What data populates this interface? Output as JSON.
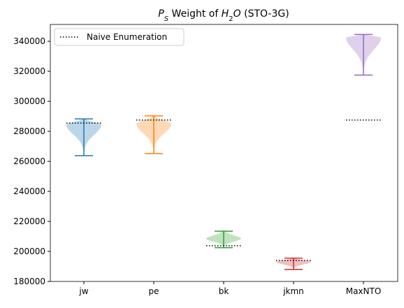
{
  "chart_data": {
    "type": "violin",
    "title": [
      {
        "text": "P",
        "italic": true
      },
      {
        "text": "S",
        "italic": true,
        "sub": true
      },
      {
        "text": " Weight of "
      },
      {
        "text": "H",
        "italic": true
      },
      {
        "text": "2",
        "sub": true
      },
      {
        "text": "O",
        "italic": true
      },
      {
        "text": " (STO-3G)"
      }
    ],
    "categories": [
      "jw",
      "pe",
      "bk",
      "jkmn",
      "MaxNTO"
    ],
    "colors": [
      "#1f77b4",
      "#ff7f0e",
      "#2ca02c",
      "#d62728",
      "#9467bd"
    ],
    "violins": [
      {
        "min": 263800,
        "max": 288300,
        "peak": 284500
      },
      {
        "min": 265200,
        "max": 290300,
        "peak": 285000
      },
      {
        "min": 202500,
        "max": 213500,
        "peak": 208500
      },
      {
        "min": 188000,
        "max": 195500,
        "peak": 193000
      },
      {
        "min": 317500,
        "max": 344500,
        "peak": 342500
      }
    ],
    "naive": {
      "name": "Naive Enumeration",
      "color": "#000000",
      "values": [
        285500,
        287500,
        203800,
        194000,
        287500
      ]
    },
    "ylim": [
      180000,
      351200
    ],
    "yticks": [
      180000,
      200000,
      220000,
      240000,
      260000,
      280000,
      300000,
      320000,
      340000
    ],
    "legend": "upper left"
  }
}
